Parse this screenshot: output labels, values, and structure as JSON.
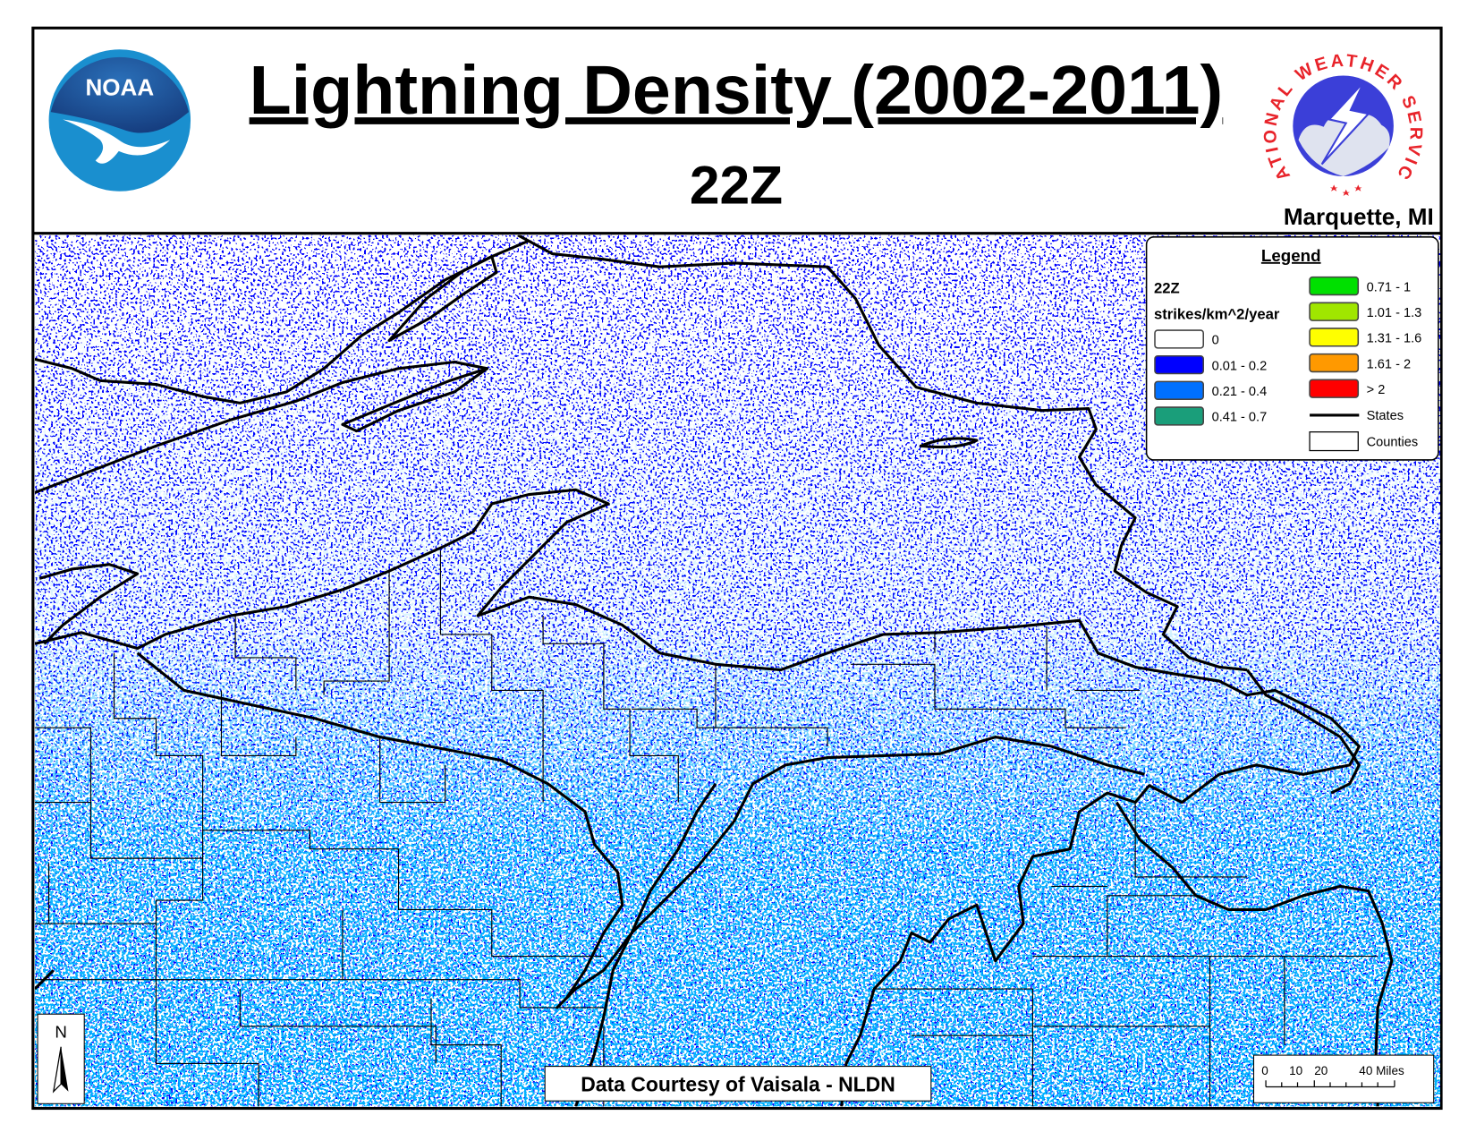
{
  "header": {
    "title": "Lightning Density (2002-2011)",
    "subtitle": "22Z",
    "location": "Marquette, MI",
    "left_logo": "NOAA",
    "right_logo": "NATIONAL WEATHER SERVICE"
  },
  "legend": {
    "title": "Legend",
    "period": "22Z",
    "units": "strikes/km^2/year",
    "items": [
      {
        "label": "0",
        "color": "#ffffff"
      },
      {
        "label": "0.01 - 0.2",
        "color": "#0000ff"
      },
      {
        "label": "0.21 - 0.4",
        "color": "#0070ff"
      },
      {
        "label": "0.41 - 0.7",
        "color": "#1a9e7a"
      },
      {
        "label": "0.71 - 1",
        "color": "#00e000"
      },
      {
        "label": "1.01 - 1.3",
        "color": "#a0e600"
      },
      {
        "label": "1.31 - 1.6",
        "color": "#ffff00"
      },
      {
        "label": "1.61 - 2",
        "color": "#ff9900"
      },
      {
        "label": "> 2",
        "color": "#ff0000"
      }
    ],
    "lines": [
      {
        "label": "States"
      },
      {
        "label": "Counties"
      }
    ]
  },
  "north_arrow": "N",
  "scale_bar": {
    "labels": [
      "0",
      "10",
      "20",
      "40 Miles"
    ]
  },
  "credit": "Data Courtesy of Vaisala - NLDN"
}
